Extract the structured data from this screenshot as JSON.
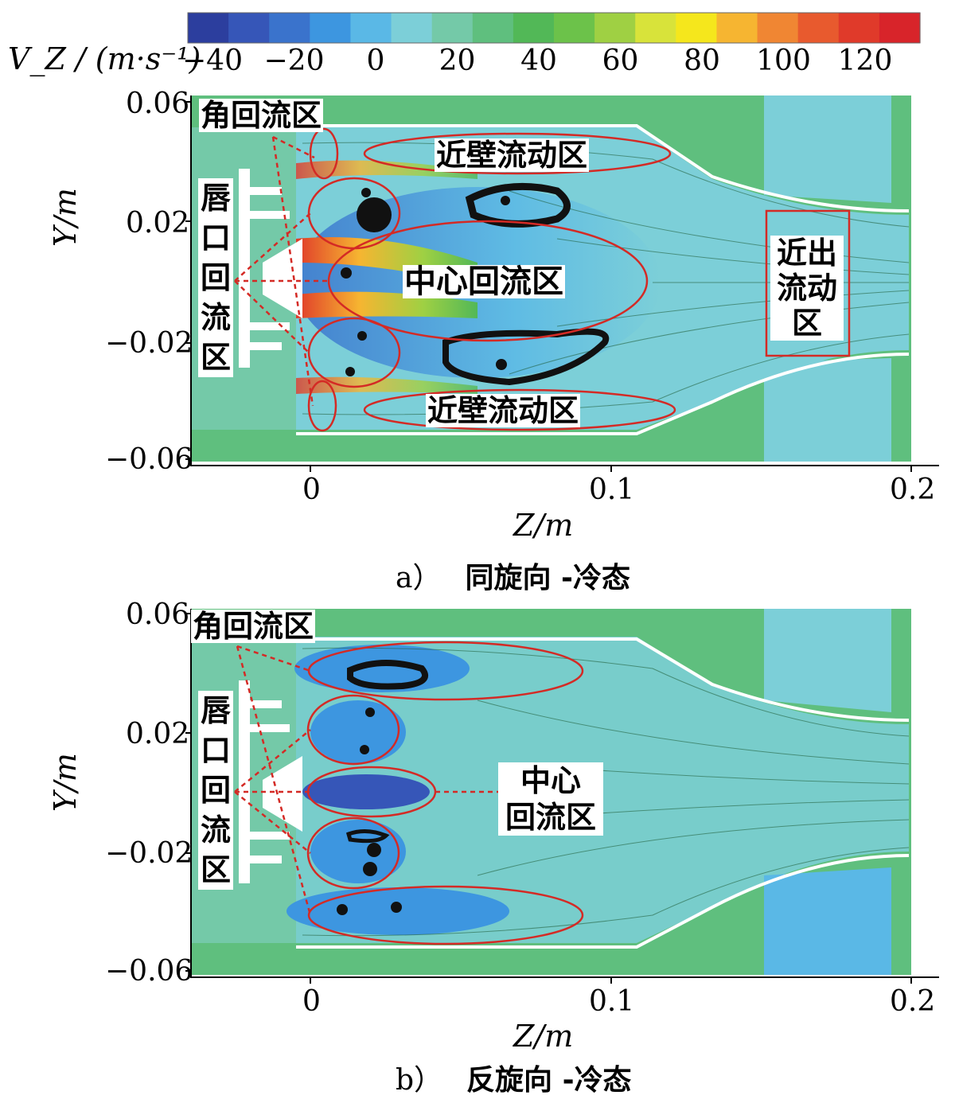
{
  "colorbar": {
    "label": "V_Z / (m·s⁻¹)",
    "ticks": [
      "−40",
      "−20",
      "0",
      "20",
      "40",
      "60",
      "80",
      "100",
      "120"
    ],
    "colors": [
      "#2c3e9e",
      "#3656b8",
      "#3a73cc",
      "#3d96e0",
      "#5ab8e6",
      "#7ccfd8",
      "#74c9a8",
      "#5fbf7e",
      "#52b857",
      "#6cc24a",
      "#9fd043",
      "#d8e33a",
      "#f5e71c",
      "#f6b531",
      "#f08633",
      "#e85a2e",
      "#e03a2a",
      "#d8242a"
    ]
  },
  "panel_a": {
    "caption_letter": "a）",
    "caption_text": "同旋向 -冷态",
    "y_ticks": [
      "0.06",
      "0.02",
      "−0.02",
      "−0.06"
    ],
    "x_ticks": [
      "0",
      "0.1",
      "0.2"
    ],
    "y_title": "Y/m",
    "x_title": "Z/m",
    "labels": {
      "corner": "角回流区",
      "lip": [
        "唇",
        "口",
        "回",
        "流",
        "区"
      ],
      "near_wall_top": "近壁流动区",
      "center": "中心回流区",
      "near_wall_bottom": "近壁流动区",
      "outlet": [
        "近出",
        "流动",
        "区"
      ]
    }
  },
  "panel_b": {
    "caption_letter": "b）",
    "caption_text": "反旋向 -冷态",
    "y_ticks": [
      "0.06",
      "0.02",
      "−0.02",
      "−0.06"
    ],
    "x_ticks": [
      "0",
      "0.1",
      "0.2"
    ],
    "y_title": "Y/m",
    "x_title": "Z/m",
    "labels": {
      "corner": "角回流区",
      "lip": [
        "唇",
        "口",
        "回",
        "流",
        "区"
      ],
      "center": [
        "中心",
        "回流区"
      ]
    }
  }
}
